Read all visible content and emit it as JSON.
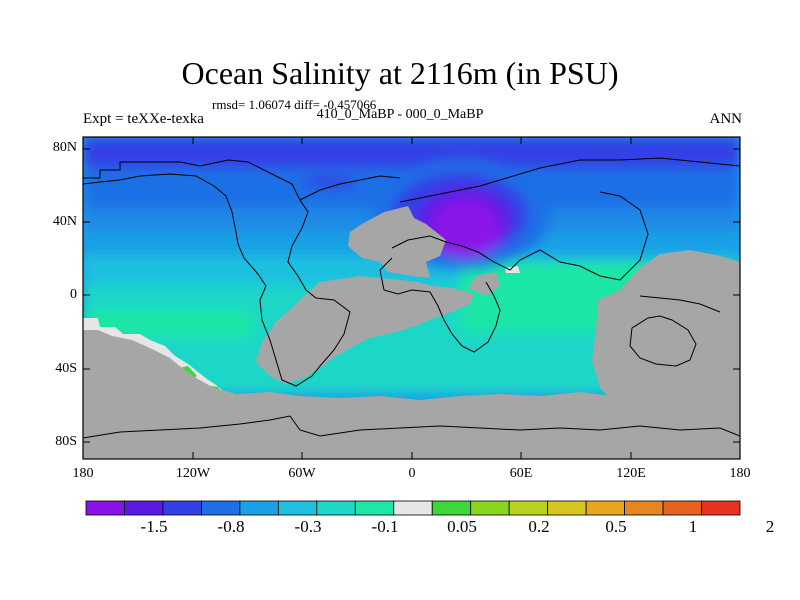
{
  "title": "Ocean Salinity at 2116m (in PSU)",
  "stats_line": "rmsd= 1.06074 diff= -0.457066",
  "comparison": "410_0_MaBP - 000_0_MaBP",
  "experiment": "Expt = teXXe-texka",
  "season": "ANN",
  "lat_ticks": [
    "80N",
    "40N",
    "0",
    "40S",
    "80S"
  ],
  "lon_ticks": [
    "180",
    "120W",
    "60W",
    "0",
    "60E",
    "120E",
    "180"
  ],
  "colorbar": {
    "colors": [
      "#8a12e8",
      "#5a1ae6",
      "#3340e6",
      "#1f6fe6",
      "#1aa0e6",
      "#1ec0e0",
      "#1ed7c8",
      "#1ee6a6",
      "#e6e6e6",
      "#3ed63a",
      "#8ad61e",
      "#b8d21e",
      "#d6c61e",
      "#e6a61e",
      "#e6861e",
      "#e6621e",
      "#e6321e"
    ],
    "labels": [
      "-1.5",
      "-0.8",
      "-0.3",
      "-0.1",
      "0.05",
      "0.2",
      "0.5",
      "1",
      "2"
    ]
  },
  "map_colors": {
    "land": "#a6a6a6",
    "deep_blue": "#3340e6",
    "mid_blue": "#1f6fe6",
    "light_blue": "#1aa0e6",
    "cyan": "#1ec0e0",
    "teal": "#1ed7c8",
    "green_teal": "#1ee6a6",
    "purple": "#8a12e8",
    "violet": "#5a1ae6",
    "white": "#e6e6e6",
    "green": "#3ed63a"
  }
}
